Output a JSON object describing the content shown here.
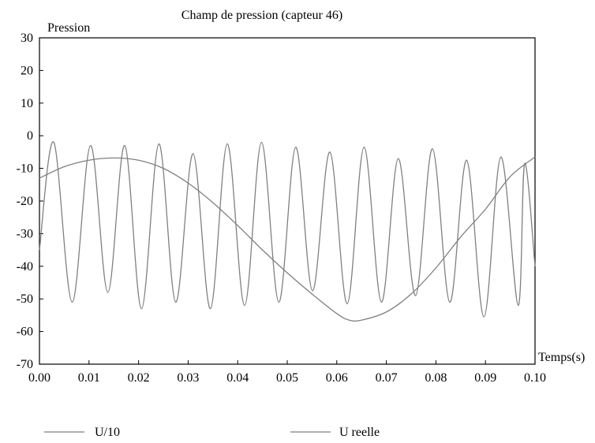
{
  "chart_data": {
    "type": "line",
    "title": "Champ de pression (capteur 46)",
    "ylabel": "Pression",
    "xlabel": "Temps(s)",
    "xlim": [
      0.0,
      0.1
    ],
    "ylim": [
      -70,
      30
    ],
    "xticks": [
      "0.00",
      "0.01",
      "0.02",
      "0.03",
      "0.04",
      "0.05",
      "0.06",
      "0.07",
      "0.08",
      "0.09",
      "0.10"
    ],
    "yticks": [
      "30",
      "20",
      "10",
      "0",
      "-10",
      "-20",
      "-30",
      "-40",
      "-50",
      "-60",
      "-70"
    ],
    "grid": false,
    "legend_position": "bottom",
    "series_color": "#808080",
    "series": [
      {
        "name": "U/10",
        "x": [
          0.0,
          0.005,
          0.01,
          0.015,
          0.02,
          0.025,
          0.03,
          0.035,
          0.04,
          0.045,
          0.05,
          0.055,
          0.06,
          0.0625,
          0.065,
          0.07,
          0.075,
          0.08,
          0.085,
          0.09,
          0.095,
          0.1
        ],
        "y": [
          -13,
          -9.5,
          -7.5,
          -6.8,
          -7.5,
          -10,
          -14.5,
          -20.5,
          -27.5,
          -35,
          -42,
          -48.5,
          -54.5,
          -56.5,
          -56.5,
          -54,
          -48.5,
          -40.5,
          -31,
          -22.5,
          -12.5,
          -6.5
        ]
      },
      {
        "name": "U reelle",
        "x": [
          0.0,
          0.0029,
          0.0066,
          0.0103,
          0.0138,
          0.0172,
          0.0206,
          0.0241,
          0.0275,
          0.031,
          0.0345,
          0.0379,
          0.0414,
          0.0448,
          0.0483,
          0.0517,
          0.0551,
          0.0586,
          0.0621,
          0.0655,
          0.069,
          0.0724,
          0.0759,
          0.0793,
          0.0828,
          0.0862,
          0.0897,
          0.0931,
          0.0966,
          0.0979,
          0.1
        ],
        "y": [
          -35,
          -2,
          -51,
          -3,
          -48,
          -3,
          -53,
          -2.5,
          -51,
          -5.5,
          -53,
          -2.5,
          -52,
          -2,
          -51,
          -3.5,
          -47.5,
          -5,
          -51.5,
          -3.5,
          -51,
          -7,
          -49,
          -4,
          -51,
          -7.5,
          -55.5,
          -6.5,
          -52,
          -8.5,
          -40
        ]
      }
    ]
  }
}
